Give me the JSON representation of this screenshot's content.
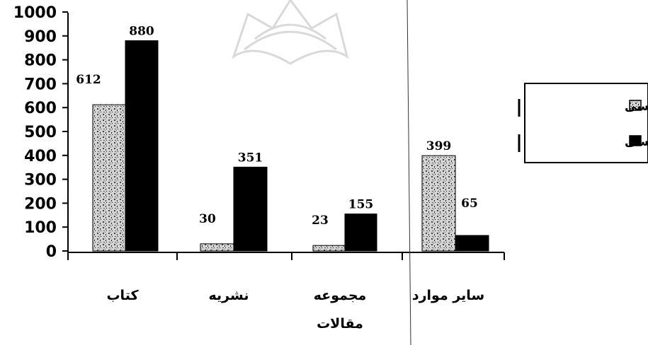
{
  "chart_data": {
    "type": "bar",
    "categories": [
      [
        "کتاب"
      ],
      [
        "نشریه"
      ],
      [
        "مجموعه",
        "مقالات"
      ],
      [
        "سایر موارد"
      ]
    ],
    "series": [
      {
        "name": "منابع فارسی",
        "values": [
          612,
          30,
          23,
          399
        ],
        "color": "#cfcfcf"
      },
      {
        "name": "منابع انگلیسی",
        "values": [
          880,
          351,
          155,
          65
        ],
        "color": "#000000"
      }
    ],
    "ylim": [
      0,
      1000
    ],
    "yticks": [
      1000,
      900,
      800,
      700,
      600,
      500,
      400,
      300,
      200,
      100,
      0
    ],
    "legend_position": "right",
    "grid": false
  }
}
